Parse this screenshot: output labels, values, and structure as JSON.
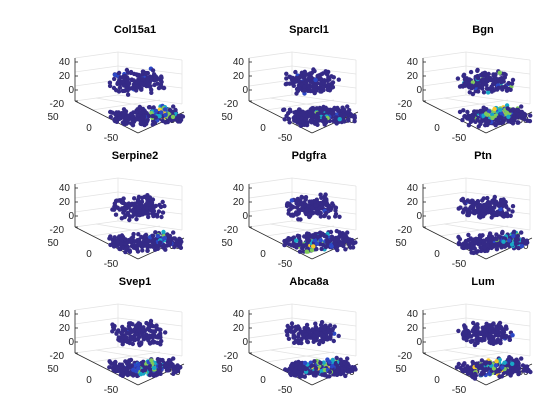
{
  "chart_data": [
    {
      "type": "scatter3d",
      "title": "Col15a1",
      "zticks": [
        "40",
        "20",
        "0",
        "-20"
      ],
      "xticks": [
        "-50",
        "50"
      ],
      "yticks": [
        "50",
        "0"
      ],
      "zlim": [
        -30,
        50
      ],
      "xlim": [
        -50,
        50
      ],
      "ylim": [
        -50,
        50
      ],
      "grid": true,
      "hotspots": [
        {
          "x": 30,
          "y": -10,
          "level": 0.9
        },
        {
          "x": 25,
          "y": 0,
          "level": 0.7
        },
        {
          "x": 20,
          "y": -15,
          "level": 0.6
        }
      ]
    },
    {
      "type": "scatter3d",
      "title": "Sparcl1",
      "zticks": [
        "40",
        "20",
        "0",
        "-20"
      ],
      "xticks": [
        "-50",
        "50"
      ],
      "yticks": [
        "50",
        "0"
      ],
      "zlim": [
        -30,
        50
      ],
      "xlim": [
        -50,
        50
      ],
      "ylim": [
        -50,
        50
      ],
      "grid": true,
      "hotspots": [
        {
          "x": 10,
          "y": -10,
          "level": 0.5
        }
      ]
    },
    {
      "type": "scatter3d",
      "title": "Bgn",
      "zticks": [
        "40",
        "20",
        "0",
        "-20"
      ],
      "xticks": [
        "-50",
        "50"
      ],
      "yticks": [
        "50",
        "0"
      ],
      "zlim": [
        -30,
        50
      ],
      "xlim": [
        -50,
        50
      ],
      "ylim": [
        -50,
        50
      ],
      "grid": true,
      "hotspots": [
        {
          "x": 10,
          "y": 10,
          "level": 0.9
        },
        {
          "x": 5,
          "y": -10,
          "level": 0.7
        },
        {
          "x": -10,
          "y": -20,
          "level": 0.6
        },
        {
          "x": 20,
          "y": -5,
          "level": 0.8
        },
        {
          "x": -15,
          "y": 35,
          "level": 0.8
        }
      ]
    },
    {
      "type": "scatter3d",
      "title": "Serpine2",
      "zticks": [
        "40",
        "20",
        "0",
        "-20"
      ],
      "xticks": [
        "-50",
        "50"
      ],
      "yticks": [
        "50",
        "0"
      ],
      "zlim": [
        -30,
        50
      ],
      "xlim": [
        -50,
        50
      ],
      "ylim": [
        -50,
        50
      ],
      "grid": true,
      "hotspots": [
        {
          "x": 25,
          "y": -5,
          "level": 0.6
        }
      ]
    },
    {
      "type": "scatter3d",
      "title": "Pdgfra",
      "zticks": [
        "40",
        "20",
        "0",
        "-20"
      ],
      "xticks": [
        "-50",
        "50"
      ],
      "yticks": [
        "50",
        "0"
      ],
      "zlim": [
        -30,
        50
      ],
      "xlim": [
        -50,
        50
      ],
      "ylim": [
        -50,
        50
      ],
      "grid": true,
      "hotspots": [
        {
          "x": -10,
          "y": -25,
          "level": 0.7
        },
        {
          "x": 5,
          "y": -15,
          "level": 0.6
        },
        {
          "x": -20,
          "y": -30,
          "level": 0.6
        }
      ]
    },
    {
      "type": "scatter3d",
      "title": "Ptn",
      "zticks": [
        "40",
        "20",
        "0",
        "-20"
      ],
      "xticks": [
        "-50",
        "50"
      ],
      "yticks": [
        "50",
        "0"
      ],
      "zlim": [
        -30,
        50
      ],
      "xlim": [
        -50,
        50
      ],
      "ylim": [
        -50,
        50
      ],
      "grid": true,
      "hotspots": [
        {
          "x": 30,
          "y": -5,
          "level": 0.6
        },
        {
          "x": 15,
          "y": -20,
          "level": 0.4
        }
      ]
    },
    {
      "type": "scatter3d",
      "title": "Svep1",
      "zticks": [
        "40",
        "20",
        "0",
        "-20"
      ],
      "xticks": [
        "-50",
        "50"
      ],
      "yticks": [
        "50",
        "0"
      ],
      "zlim": [
        -30,
        50
      ],
      "xlim": [
        -50,
        50
      ],
      "ylim": [
        -50,
        50
      ],
      "grid": true,
      "hotspots": [
        {
          "x": 0,
          "y": -15,
          "level": 0.7
        },
        {
          "x": -15,
          "y": -25,
          "level": 0.5
        },
        {
          "x": 15,
          "y": -5,
          "level": 0.5
        }
      ]
    },
    {
      "type": "scatter3d",
      "title": "Abca8a",
      "zticks": [
        "40",
        "20",
        "0",
        "-20"
      ],
      "xticks": [
        "-50",
        "50"
      ],
      "yticks": [
        "50",
        "0"
      ],
      "zlim": [
        -30,
        50
      ],
      "xlim": [
        -50,
        50
      ],
      "ylim": [
        -50,
        50
      ],
      "grid": true,
      "hotspots": [
        {
          "x": 5,
          "y": -10,
          "level": 0.9
        },
        {
          "x": -10,
          "y": -20,
          "level": 0.7
        },
        {
          "x": 20,
          "y": 0,
          "level": 0.6
        }
      ]
    },
    {
      "type": "scatter3d",
      "title": "Lum",
      "zticks": [
        "40",
        "20",
        "0",
        "-20"
      ],
      "xticks": [
        "-50",
        "50"
      ],
      "yticks": [
        "50",
        "0"
      ],
      "zlim": [
        -30,
        50
      ],
      "xlim": [
        -50,
        50
      ],
      "ylim": [
        -50,
        50
      ],
      "grid": true,
      "hotspots": [
        {
          "x": 0,
          "y": -15,
          "level": 0.8
        },
        {
          "x": -15,
          "y": -25,
          "level": 0.7
        },
        {
          "x": 15,
          "y": -5,
          "level": 0.6
        }
      ]
    }
  ],
  "colors": {
    "base": "#352a87",
    "low": "#2c48c7",
    "mid": "#18a8c6",
    "high": "#7fca5a",
    "top": "#f9c92c",
    "axis": "#262626",
    "grid": "#e3e3e3"
  }
}
